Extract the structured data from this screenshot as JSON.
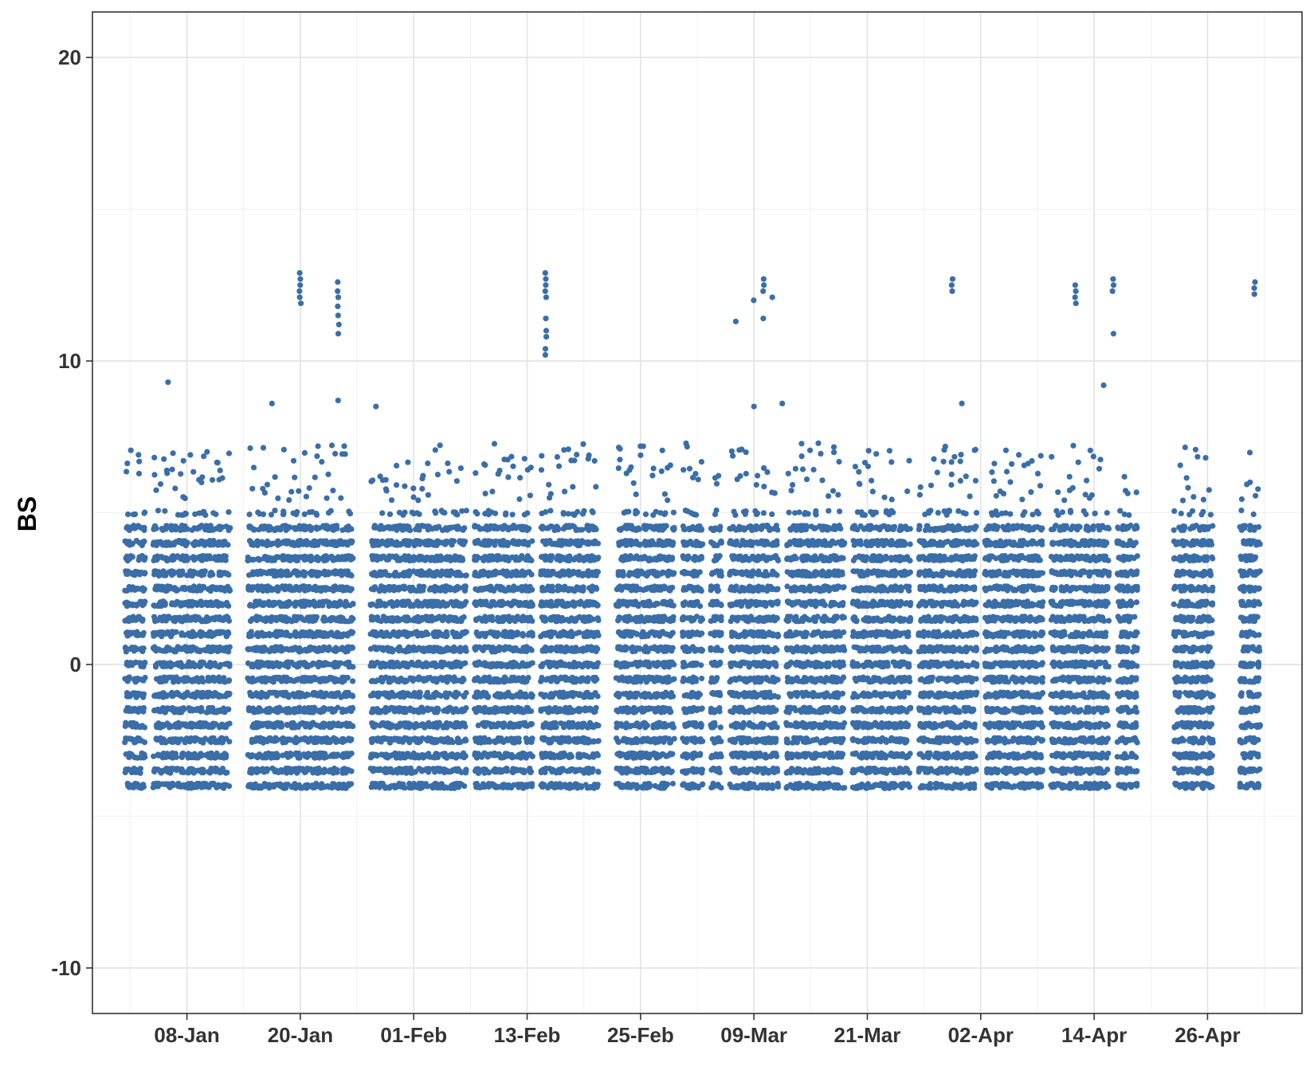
{
  "chart_data": {
    "type": "scatter",
    "title": "",
    "xlabel": "",
    "ylabel": "BS",
    "point_color": "#3a6ea8",
    "grid": true,
    "legend": "none",
    "x_axis": {
      "type": "date",
      "range": [
        "2019-12-29",
        "2019-05-06"
      ],
      "tick_dates": [
        "2019-01-08",
        "2019-01-20",
        "2019-02-01",
        "2019-02-13",
        "2019-02-25",
        "2019-03-09",
        "2019-03-21",
        "2019-04-02",
        "2019-04-14",
        "2019-04-26"
      ],
      "tick_labels": [
        "08-Jan",
        "20-Jan",
        "01-Feb",
        "13-Feb",
        "25-Feb",
        "09-Mar",
        "21-Mar",
        "02-Apr",
        "14-Apr",
        "26-Apr"
      ]
    },
    "y_axis": {
      "ticks": [
        -10,
        0,
        10,
        20
      ],
      "tick_labels": [
        "-10",
        "0",
        "10",
        "20"
      ],
      "range": [
        -11.5,
        21.5
      ]
    },
    "data_range": {
      "start_date": "2019-01-02",
      "end_date": "2019-05-01",
      "missing_dates": [
        "2019-01-04",
        "2019-01-13",
        "2019-01-14",
        "2019-01-26",
        "2019-01-27",
        "2019-02-07",
        "2019-02-14",
        "2019-02-21",
        "2019-02-22",
        "2019-03-01",
        "2019-03-04",
        "2019-03-06",
        "2019-03-12",
        "2019-03-19",
        "2019-03-26",
        "2019-04-02",
        "2019-04-09",
        "2019-04-16",
        "2019-04-19",
        "2019-04-20",
        "2019-04-21",
        "2019-04-22",
        "2019-04-27",
        "2019-04-28",
        "2019-04-29"
      ],
      "value_levels": [
        -4.0,
        -3.5,
        -3.0,
        -2.5,
        -2.0,
        -1.5,
        -1.0,
        -0.5,
        0.0,
        0.5,
        1.0,
        1.5,
        2.0,
        2.5,
        3.0,
        3.5,
        4.0,
        4.5,
        5.0
      ],
      "dense_min": -4.0,
      "dense_max": 4.5
    },
    "outliers": [
      {
        "date": "2019-01-20",
        "values": [
          12.9,
          12.7,
          12.5,
          12.3,
          12.1,
          11.9
        ]
      },
      {
        "date": "2019-01-24",
        "values": [
          12.6,
          12.3,
          12.1,
          11.8,
          11.5,
          11.2,
          10.9
        ]
      },
      {
        "date": "2019-02-15",
        "values": [
          12.9,
          12.7,
          12.5,
          12.3,
          12.1,
          11.4,
          11.0,
          10.8,
          10.4,
          10.2
        ]
      },
      {
        "date": "2019-03-07",
        "values": [
          11.3
        ]
      },
      {
        "date": "2019-03-09",
        "values": [
          12.0
        ]
      },
      {
        "date": "2019-03-10",
        "values": [
          12.7,
          12.5,
          12.3,
          11.4
        ]
      },
      {
        "date": "2019-03-11",
        "values": [
          12.1
        ]
      },
      {
        "date": "2019-03-30",
        "values": [
          12.7,
          12.5,
          12.3
        ]
      },
      {
        "date": "2019-04-12",
        "values": [
          12.5,
          12.3,
          12.1,
          11.9
        ]
      },
      {
        "date": "2019-04-16",
        "values": [
          12.7,
          12.5,
          12.3,
          10.9
        ]
      },
      {
        "date": "2019-05-01",
        "values": [
          12.6,
          12.4,
          12.2
        ]
      }
    ],
    "high_singles": [
      {
        "date": "2019-01-06",
        "value": 9.3
      },
      {
        "date": "2019-01-17",
        "value": 8.6
      },
      {
        "date": "2019-01-24",
        "value": 8.7
      },
      {
        "date": "2019-01-28",
        "value": 8.5
      },
      {
        "date": "2019-03-09",
        "value": 8.5
      },
      {
        "date": "2019-03-12",
        "value": 8.6
      },
      {
        "date": "2019-03-31",
        "value": 8.6
      },
      {
        "date": "2019-04-15",
        "value": 9.2
      }
    ]
  }
}
